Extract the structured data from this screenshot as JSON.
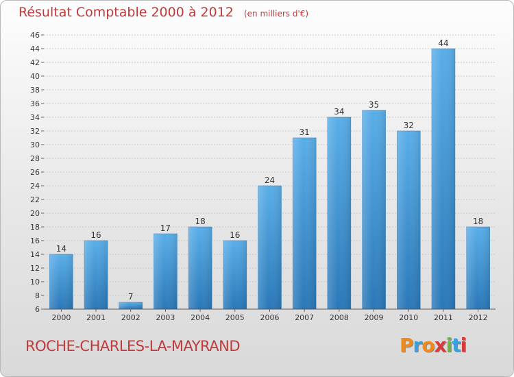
{
  "header": {
    "title": "Résultat Comptable 2000 à 2012",
    "subtitle": "(en milliers d'€)"
  },
  "footer": {
    "place": "ROCHE-CHARLES-LA-MAYRAND",
    "logo": "Proxiti"
  },
  "colors": {
    "title": "#c0393b",
    "bar_top": "#5aaee8",
    "bar_bottom": "#2a78b8",
    "logo_letters": [
      "#f08a1c",
      "#3aa0dc",
      "#f08a1c",
      "#d93a3a",
      "#6cb33f",
      "#3aa0dc",
      "#d93a3a"
    ]
  },
  "chart_data": {
    "type": "bar",
    "title": "Résultat Comptable 2000 à 2012",
    "categories": [
      "2000",
      "2001",
      "2002",
      "2003",
      "2004",
      "2005",
      "2006",
      "2007",
      "2008",
      "2009",
      "2010",
      "2011",
      "2012"
    ],
    "values": [
      14,
      16,
      7,
      17,
      18,
      16,
      24,
      31,
      34,
      35,
      32,
      44,
      18
    ],
    "ylim": [
      6,
      46
    ],
    "yticks": [
      6,
      8,
      10,
      12,
      14,
      16,
      18,
      20,
      22,
      24,
      26,
      28,
      30,
      32,
      34,
      36,
      38,
      40,
      42,
      44,
      46
    ],
    "grid": true,
    "xlabel": "",
    "ylabel": ""
  }
}
